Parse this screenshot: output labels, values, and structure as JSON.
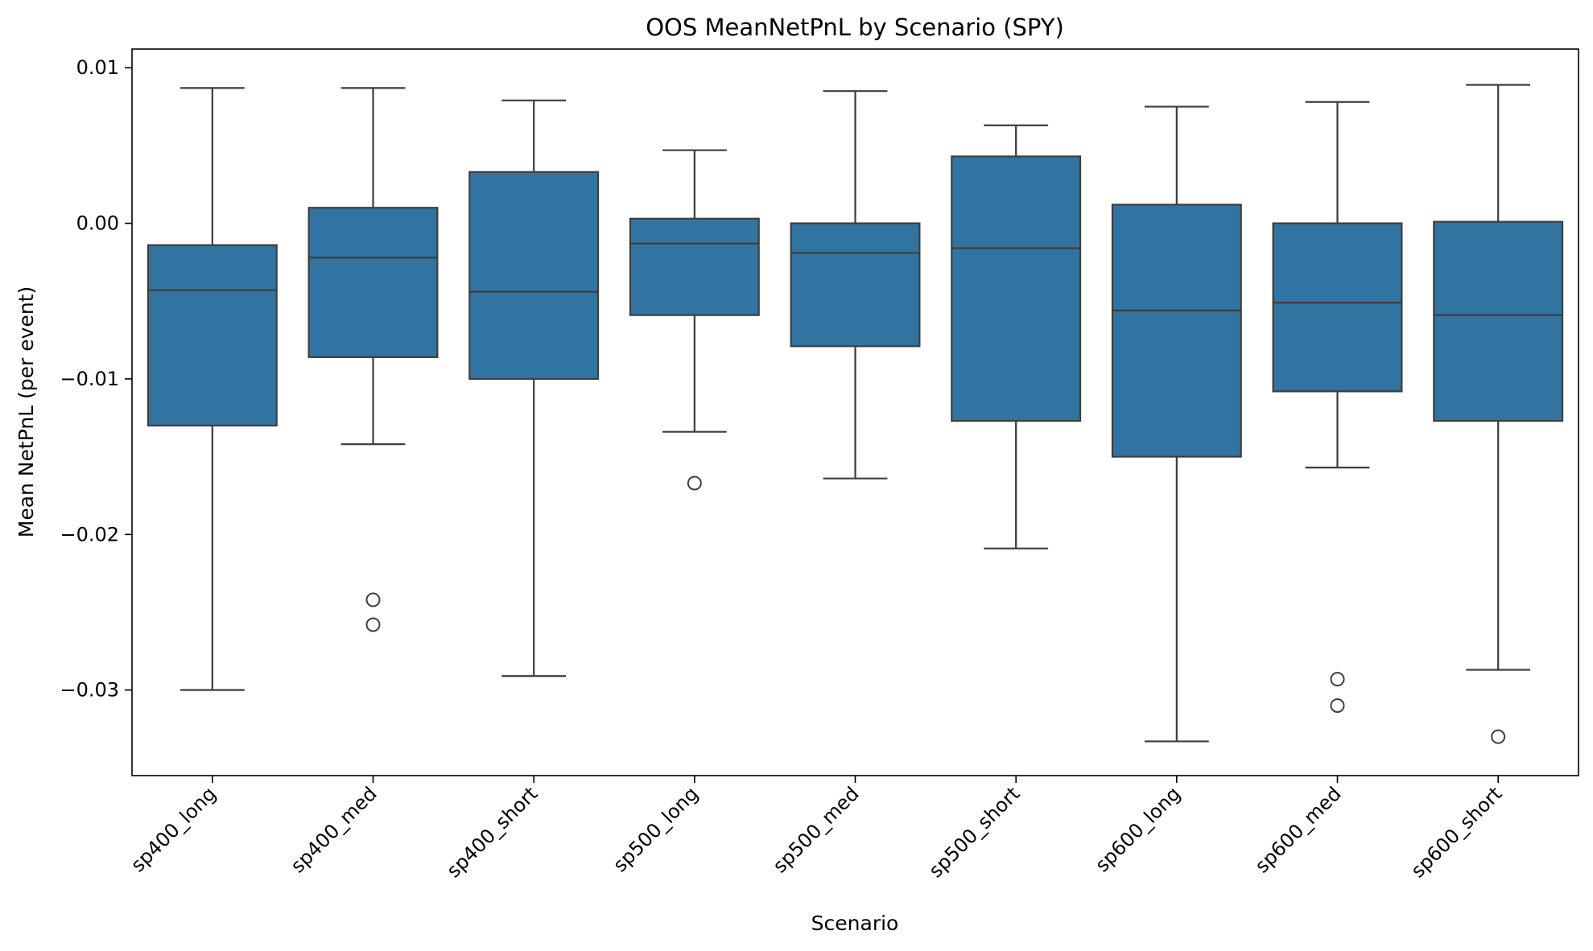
{
  "chart_data": {
    "type": "box",
    "title": "OOS MeanNetPnL by Scenario (SPY)",
    "xlabel": "Scenario",
    "ylabel": "Mean NetPnL (per event)",
    "ylim": [
      -0.0355,
      0.0112
    ],
    "yticks": [
      0.01,
      0.0,
      -0.01,
      -0.02,
      -0.03
    ],
    "ytick_labels": [
      "0.01",
      "0.00",
      "−0.01",
      "−0.02",
      "−0.03"
    ],
    "grid": false,
    "legend": "none",
    "box_color": "#3274a1",
    "line_color": "#3d3d3d",
    "categories": [
      "sp400_long",
      "sp400_med",
      "sp400_short",
      "sp500_long",
      "sp500_med",
      "sp500_short",
      "sp600_long",
      "sp600_med",
      "sp600_short"
    ],
    "boxes": [
      {
        "whisker_low": -0.03,
        "q1": -0.013,
        "median": -0.0043,
        "q3": -0.0014,
        "whisker_high": 0.0087,
        "outliers": []
      },
      {
        "whisker_low": -0.0142,
        "q1": -0.0086,
        "median": -0.0022,
        "q3": 0.001,
        "whisker_high": 0.0087,
        "outliers": [
          -0.0242,
          -0.0258
        ]
      },
      {
        "whisker_low": -0.0291,
        "q1": -0.01,
        "median": -0.0044,
        "q3": 0.0033,
        "whisker_high": 0.0079,
        "outliers": []
      },
      {
        "whisker_low": -0.0134,
        "q1": -0.0059,
        "median": -0.0013,
        "q3": 0.0003,
        "whisker_high": 0.0047,
        "outliers": [
          -0.0167
        ]
      },
      {
        "whisker_low": -0.0164,
        "q1": -0.0079,
        "median": -0.0019,
        "q3": 0.0,
        "whisker_high": 0.0085,
        "outliers": []
      },
      {
        "whisker_low": -0.0209,
        "q1": -0.0127,
        "median": -0.0016,
        "q3": 0.0043,
        "whisker_high": 0.0063,
        "outliers": []
      },
      {
        "whisker_low": -0.0333,
        "q1": -0.015,
        "median": -0.0056,
        "q3": 0.0012,
        "whisker_high": 0.0075,
        "outliers": []
      },
      {
        "whisker_low": -0.0157,
        "q1": -0.0108,
        "median": -0.0051,
        "q3": 0.0,
        "whisker_high": 0.0078,
        "outliers": [
          -0.0293,
          -0.031
        ]
      },
      {
        "whisker_low": -0.0287,
        "q1": -0.0127,
        "median": -0.0059,
        "q3": 0.0001,
        "whisker_high": 0.0089,
        "outliers": [
          -0.033
        ]
      }
    ]
  }
}
